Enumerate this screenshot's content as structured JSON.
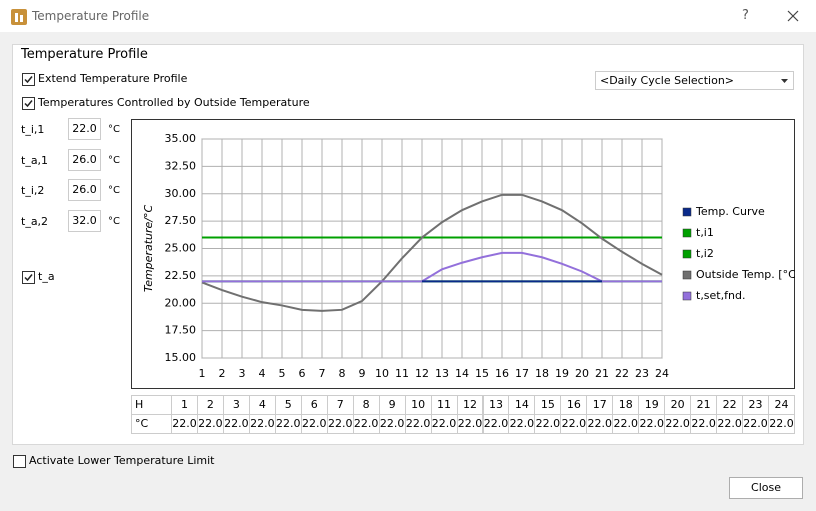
{
  "window": {
    "title": "Temperature Profile",
    "help": "?"
  },
  "group_title": "Temperature Profile",
  "options": [
    {
      "label": "Extend Temperature Profile",
      "checked": true
    },
    {
      "label": "Temperatures Controlled by Outside Temperature",
      "checked": true
    }
  ],
  "dropdown": "<Daily Cycle Selection>",
  "inputs": [
    {
      "label": "t_i,1",
      "value": "22.0",
      "unit": "°C"
    },
    {
      "label": "t_a,1",
      "value": "26.0",
      "unit": "°C"
    },
    {
      "label": "t_i,2",
      "value": "26.0",
      "unit": "°C"
    },
    {
      "label": "t_a,2",
      "value": "32.0",
      "unit": "°C"
    }
  ],
  "ta_toggle": {
    "label": "t_a",
    "checked": true
  },
  "lower_limit": {
    "label": "Activate Lower Temperature Limit",
    "checked": false
  },
  "close_button": "Close",
  "chart_data": {
    "type": "line",
    "ylabel": "Temperature/°C",
    "x": [
      1,
      2,
      3,
      4,
      5,
      6,
      7,
      8,
      9,
      10,
      11,
      12,
      13,
      14,
      15,
      16,
      17,
      18,
      19,
      20,
      21,
      22,
      23,
      24
    ],
    "xlim": [
      1,
      24
    ],
    "xticks": [
      1,
      2,
      3,
      4,
      5,
      6,
      7,
      8,
      9,
      10,
      11,
      12,
      13,
      14,
      15,
      16,
      17,
      18,
      19,
      20,
      21,
      22,
      23,
      24
    ],
    "ylim": [
      15,
      35
    ],
    "yticks": [
      {
        "value": 15,
        "label": "15.00"
      },
      {
        "value": 17.5,
        "label": "17.50"
      },
      {
        "value": 20,
        "label": "20.00"
      },
      {
        "value": 22.5,
        "label": "22.50"
      },
      {
        "value": 25,
        "label": "25.00"
      },
      {
        "value": 27.5,
        "label": "27.50"
      },
      {
        "value": 30,
        "label": "30.00"
      },
      {
        "value": 32.5,
        "label": "32.50"
      },
      {
        "value": 35,
        "label": "35.00"
      }
    ],
    "grid": true,
    "legend": "right",
    "series": [
      {
        "name": "t,i1",
        "color": "#00a000",
        "values": [
          22,
          22,
          22,
          22,
          22,
          22,
          22,
          22,
          22,
          22,
          22,
          22,
          22,
          22,
          22,
          22,
          22,
          22,
          22,
          22,
          22,
          22,
          22,
          22
        ]
      },
      {
        "name": "t,i2",
        "color": "#00a000",
        "values": [
          26,
          26,
          26,
          26,
          26,
          26,
          26,
          26,
          26,
          26,
          26,
          26,
          26,
          26,
          26,
          26,
          26,
          26,
          26,
          26,
          26,
          26,
          26,
          26
        ]
      },
      {
        "name": "Outside Temp. [°C]",
        "color": "#707070",
        "values": [
          21.9,
          21.2,
          20.6,
          20.1,
          19.8,
          19.4,
          19.3,
          19.4,
          20.2,
          22.0,
          24.1,
          26.0,
          27.4,
          28.5,
          29.3,
          29.9,
          29.9,
          29.3,
          28.5,
          27.3,
          25.9,
          24.7,
          23.6,
          22.6
        ]
      },
      {
        "name": "t,set,fnd.",
        "color": "#9370db",
        "values": [
          22,
          22,
          22,
          22,
          22,
          22,
          22,
          22,
          22,
          22,
          22,
          22,
          23.1,
          23.7,
          24.2,
          24.6,
          24.6,
          24.2,
          23.6,
          22.9,
          22,
          22,
          22,
          22
        ]
      },
      {
        "name": "Temp. Curve",
        "color": "#0a2a8a",
        "values": [
          null,
          null,
          null,
          null,
          null,
          null,
          null,
          null,
          null,
          null,
          null,
          22,
          22,
          22,
          22,
          22,
          22,
          22,
          22,
          22,
          22,
          null,
          null,
          null
        ]
      }
    ],
    "legend_order": [
      4,
      0,
      1,
      2,
      3
    ]
  },
  "table": {
    "hour_label": "H",
    "unit_label": "°C",
    "hours": [
      "1",
      "2",
      "3",
      "4",
      "5",
      "6",
      "7",
      "8",
      "9",
      "10",
      "11",
      "12",
      "13",
      "14",
      "15",
      "16",
      "17",
      "18",
      "19",
      "20",
      "21",
      "22",
      "23",
      "24"
    ],
    "values": [
      "22.0",
      "22.0",
      "22.0",
      "22.0",
      "22.0",
      "22.0",
      "22.0",
      "22.0",
      "22.0",
      "22.0",
      "22.0",
      "22.0",
      "22.0",
      "22.0",
      "22.0",
      "22.0",
      "22.0",
      "22.0",
      "22.0",
      "22.0",
      "22.0",
      "22.0",
      "22.0",
      "22.0"
    ]
  }
}
